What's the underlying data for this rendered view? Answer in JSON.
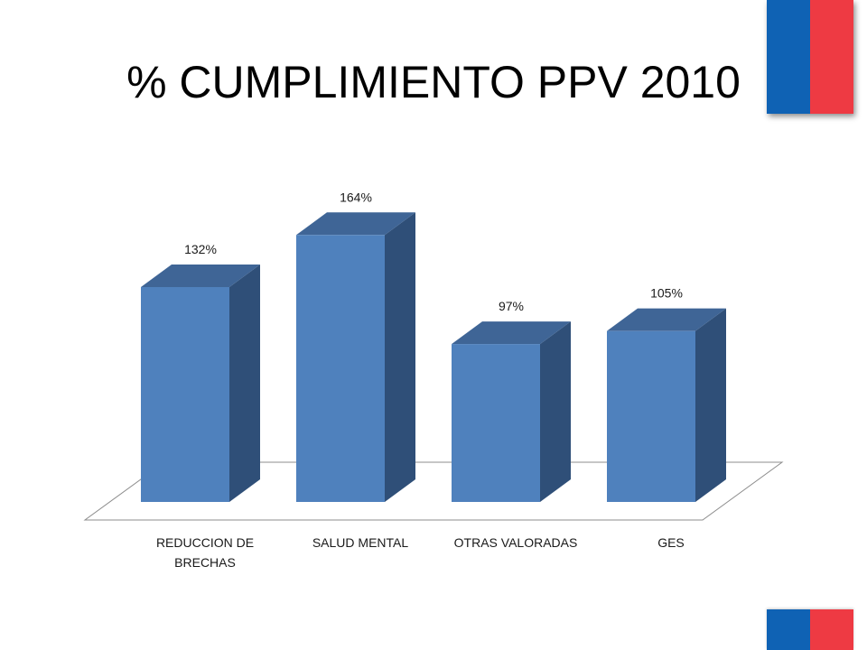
{
  "slide": {
    "title": "% CUMPLIMIENTO PPV 2010"
  },
  "colors": {
    "bar_front": "#4F81BD",
    "bar_top": "#3F6596",
    "bar_side": "#2F4F78",
    "flag_blue": "#0F62B4",
    "flag_red": "#EE3A43"
  },
  "chart_data": {
    "type": "bar",
    "style": "3d-column",
    "categories": [
      [
        "REDUCCION DE",
        "BRECHAS"
      ],
      [
        "SALUD MENTAL"
      ],
      [
        "OTRAS VALORADAS"
      ],
      [
        "GES"
      ]
    ],
    "values": [
      132,
      164,
      97,
      105
    ],
    "data_labels": [
      "132%",
      "164%",
      "97%",
      "105%"
    ],
    "value_unit": "%",
    "ylim": [
      0,
      200
    ],
    "grid": false,
    "legend": "none"
  }
}
